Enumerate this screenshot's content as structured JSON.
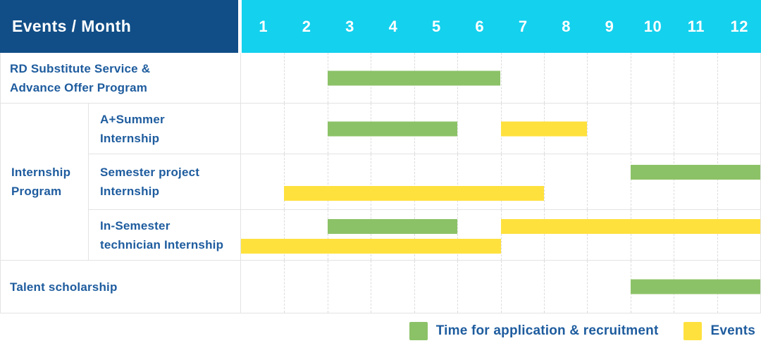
{
  "colors": {
    "navy": "#114E87",
    "cyan": "#14D1EE",
    "green": "#8CC267",
    "yellow": "#FFE13E",
    "labelblue": "#1E5C9E"
  },
  "header": {
    "corner_label": "Events / Month",
    "months": [
      "1",
      "2",
      "3",
      "4",
      "5",
      "6",
      "7",
      "8",
      "9",
      "10",
      "11",
      "12"
    ]
  },
  "group": {
    "label": "Internship Program",
    "label_lines": [
      "Internship",
      "Program"
    ]
  },
  "rows": [
    {
      "name": "rd-substitute-service-advance-offer-program",
      "label_lines": [
        "RD Substitute Service &",
        "Advance Offer Program"
      ],
      "lanes": 1,
      "bars": [
        {
          "type": "recruitment",
          "start": 3,
          "end": 6,
          "lane": 0
        }
      ]
    },
    {
      "name": "a-plus-summer-internship",
      "label_lines": [
        "A+Summer",
        "Internship"
      ],
      "lanes": 1,
      "bars": [
        {
          "type": "recruitment",
          "start": 3,
          "end": 5,
          "lane": 0
        },
        {
          "type": "event",
          "start": 7,
          "end": 8,
          "lane": 0
        }
      ]
    },
    {
      "name": "semester-project-internship",
      "label_lines": [
        "Semester project",
        "Internship"
      ],
      "lanes": 2,
      "bars": [
        {
          "type": "recruitment",
          "start": 10,
          "end": 12,
          "lane": 0
        },
        {
          "type": "event",
          "start": 2,
          "end": 7,
          "lane": 1
        }
      ]
    },
    {
      "name": "in-semester-technician-internship",
      "label_lines": [
        "In-Semester",
        "technician Internship"
      ],
      "lanes": 2,
      "bars": [
        {
          "type": "recruitment",
          "start": 3,
          "end": 5,
          "lane": 0
        },
        {
          "type": "event",
          "start": 7,
          "end": 12,
          "lane": 0
        },
        {
          "type": "event",
          "start": 1,
          "end": 6,
          "lane": 1
        }
      ]
    },
    {
      "name": "talent-scholarship",
      "label_lines": [
        "Talent scholarship"
      ],
      "lanes": 1,
      "bars": [
        {
          "type": "recruitment",
          "start": 10,
          "end": 12,
          "lane": 0
        }
      ]
    }
  ],
  "legend": [
    {
      "type": "recruitment",
      "label": "Time for application & recruitment"
    },
    {
      "type": "event",
      "label": "Events"
    }
  ],
  "chart_data": {
    "type": "table",
    "title": "Events / Month",
    "x_axis": {
      "label": "Month",
      "min": 1,
      "max": 12,
      "ticks": [
        1,
        2,
        3,
        4,
        5,
        6,
        7,
        8,
        9,
        10,
        11,
        12
      ]
    },
    "legend": {
      "green": "Time for application & recruitment",
      "yellow": "Events"
    },
    "rows": [
      {
        "event": "RD Substitute Service & Advance Offer Program",
        "group": null,
        "recruitment_months": [
          [
            3,
            6
          ]
        ],
        "event_months": []
      },
      {
        "event": "A+Summer Internship",
        "group": "Internship Program",
        "recruitment_months": [
          [
            3,
            5
          ]
        ],
        "event_months": [
          [
            7,
            8
          ]
        ]
      },
      {
        "event": "Semester project Internship",
        "group": "Internship Program",
        "recruitment_months": [
          [
            10,
            12
          ]
        ],
        "event_months": [
          [
            2,
            7
          ]
        ]
      },
      {
        "event": "In-Semester technician Internship",
        "group": "Internship Program",
        "recruitment_months": [
          [
            3,
            5
          ]
        ],
        "event_months": [
          [
            7,
            12
          ],
          [
            1,
            6
          ]
        ]
      },
      {
        "event": "Talent scholarship",
        "group": null,
        "recruitment_months": [
          [
            10,
            12
          ]
        ],
        "event_months": []
      }
    ]
  }
}
